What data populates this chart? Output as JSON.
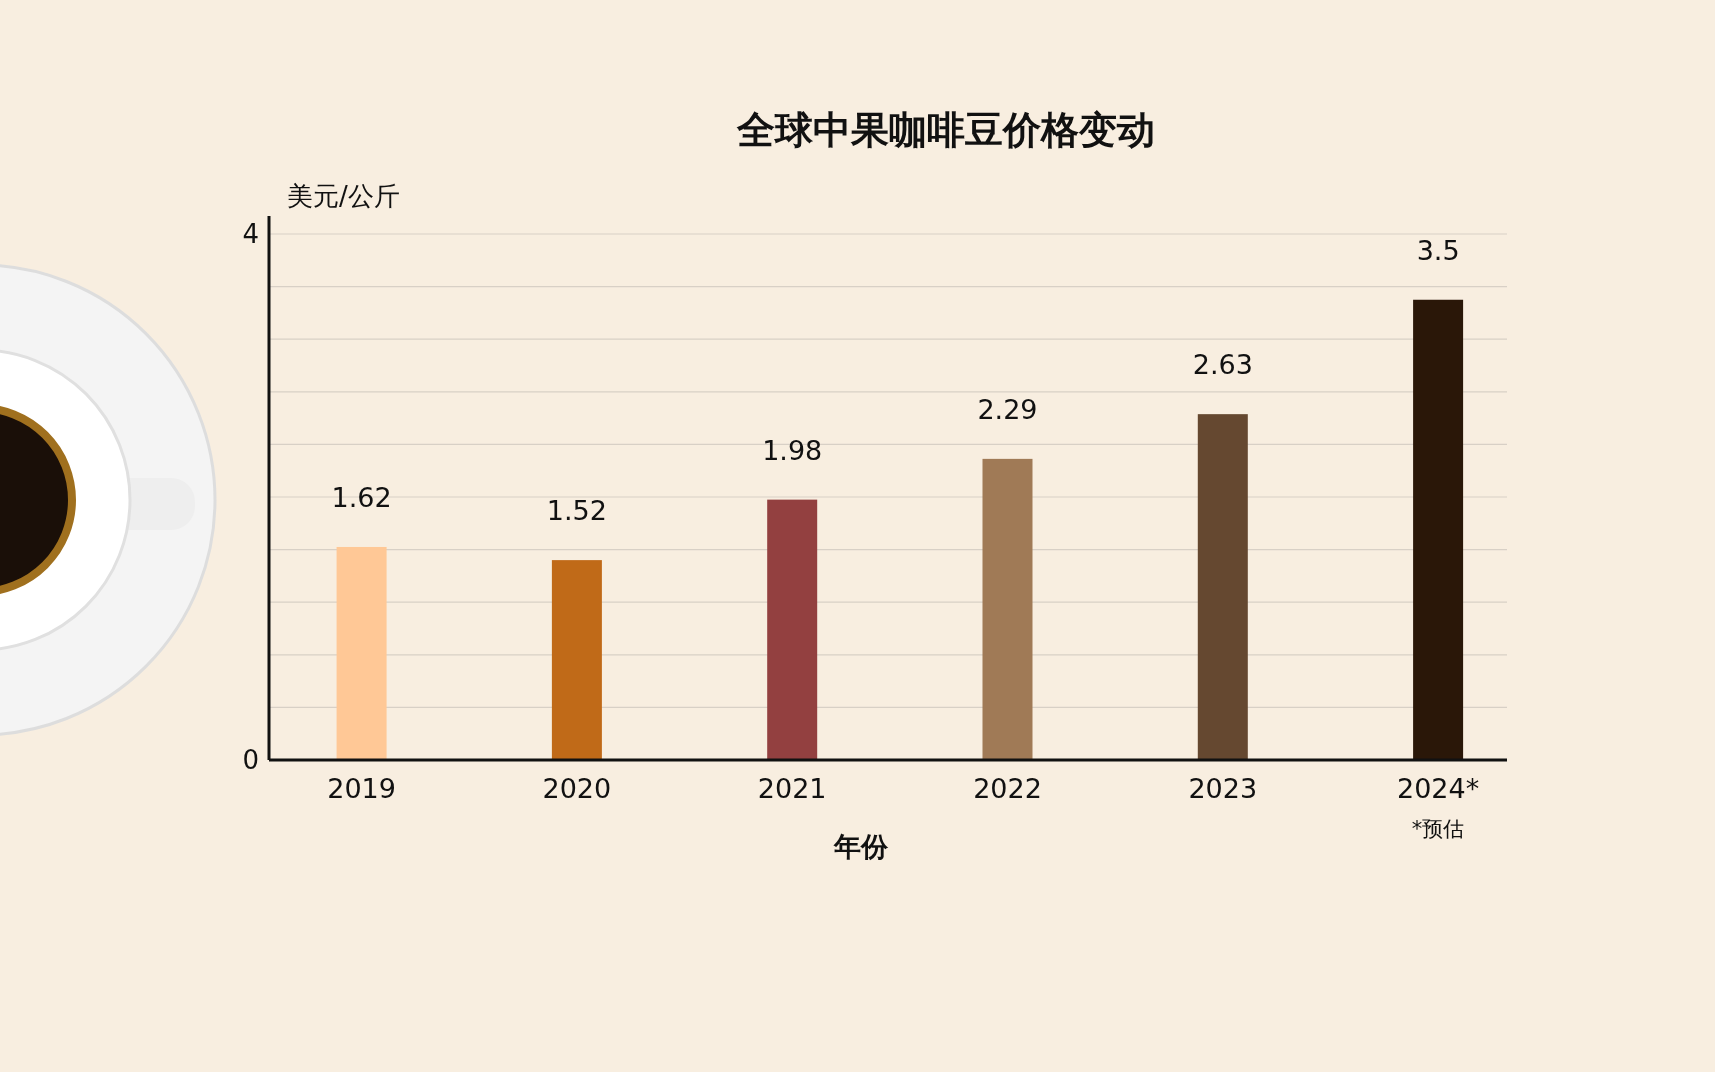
{
  "chart_data": {
    "type": "bar",
    "title": "全球中果咖啡豆价格变动",
    "xlabel": "年份",
    "ylabel": "美元/公斤",
    "categories": [
      "2019",
      "2020",
      "2021",
      "2022",
      "2023",
      "2024*"
    ],
    "values": [
      1.62,
      1.52,
      1.98,
      2.29,
      2.63,
      3.5
    ],
    "colors": [
      "#ffc896",
      "#c06a18",
      "#934040",
      "#a07a56",
      "#654830",
      "#2a1708"
    ],
    "ylim": [
      0,
      4
    ],
    "yticks": [
      0,
      {
        "value": 0.4,
        "label": null
      },
      {
        "value": 0.8,
        "label": null
      },
      {
        "value": 1.2,
        "label": null
      },
      {
        "value": 1.6,
        "label": null
      },
      {
        "value": 2.0,
        "label": null
      },
      {
        "value": 2.4,
        "label": null
      },
      {
        "value": 2.8,
        "label": null
      },
      {
        "value": 3.2,
        "label": null
      },
      {
        "value": 3.6,
        "label": null
      },
      4
    ],
    "grid": "y",
    "data_labels": true,
    "annotations": [
      "*预估"
    ]
  }
}
